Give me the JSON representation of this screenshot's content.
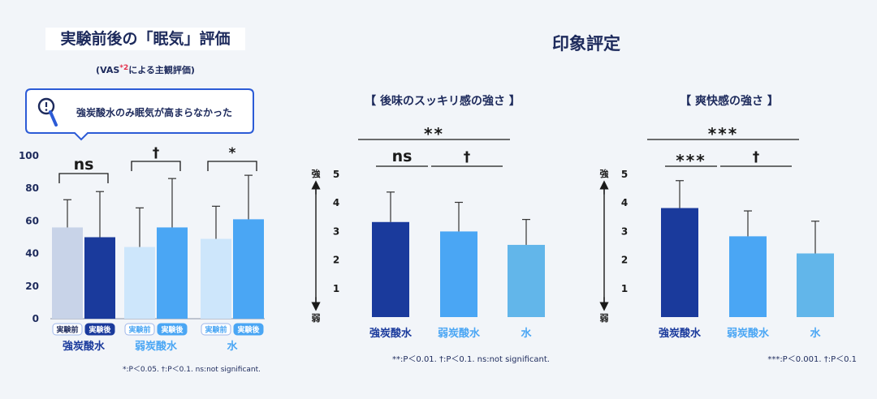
{
  "left_panel": {
    "title": "実験前後の「眠気」評価",
    "subtitle_prefix": "(VAS",
    "subtitle_sup": "*2",
    "subtitle_suffix": "による主観評価)",
    "callout": "強炭酸水のみ眠気が高まらなかった",
    "footnote": "*:P＜0.05. †:P＜0.1. ns:not significant."
  },
  "right_panel": {
    "title": "印象評定",
    "axis_top": "強",
    "axis_bottom": "弱"
  },
  "chart_data": [
    {
      "type": "bar",
      "title": "",
      "categories": [
        "強炭酸水",
        "弱炭酸水",
        "水"
      ],
      "subcategories": [
        "実験前",
        "実験後"
      ],
      "series": [
        {
          "name": "実験前",
          "values": [
            56,
            44,
            49
          ],
          "error_upper": [
            73,
            68,
            69
          ]
        },
        {
          "name": "実験後",
          "values": [
            50,
            56,
            61
          ],
          "error_upper": [
            78,
            86,
            88
          ]
        }
      ],
      "ylim": [
        0,
        100
      ],
      "yticks": [
        0,
        20,
        40,
        60,
        80,
        100
      ],
      "significance": [
        {
          "group": "強炭酸水",
          "label": "ns"
        },
        {
          "group": "弱炭酸水",
          "label": "†"
        },
        {
          "group": "水",
          "label": "*"
        }
      ],
      "colors": {
        "強炭酸水": [
          "#c8d3e8",
          "#1a3a9c"
        ],
        "弱炭酸水": [
          "#cde6fb",
          "#4aa6f4"
        ],
        "水": [
          "#cde6fb",
          "#4aa6f4"
        ]
      }
    },
    {
      "type": "bar",
      "title": "【 後味のスッキリ感の強さ 】",
      "categories": [
        "強炭酸水",
        "弱炭酸水",
        "水"
      ],
      "values": [
        3.33,
        3.0,
        2.53
      ],
      "error_upper": [
        4.38,
        4.02,
        3.42
      ],
      "ylim": [
        0,
        5
      ],
      "yticks": [
        1,
        2,
        3,
        4,
        5
      ],
      "colors": [
        "#1a3a9c",
        "#4aa6f4",
        "#62b6ea"
      ],
      "significance": [
        {
          "pair": [
            "強炭酸水",
            "弱炭酸水"
          ],
          "label": "ns"
        },
        {
          "pair": [
            "弱炭酸水",
            "水"
          ],
          "label": "†"
        },
        {
          "pair": [
            "強炭酸水",
            "水"
          ],
          "label": "**"
        }
      ],
      "footnote": "**:P＜0.01.  †:P＜0.1. ns:not significant."
    },
    {
      "type": "bar",
      "title": "【 爽快感の強さ 】",
      "categories": [
        "強炭酸水",
        "弱炭酸水",
        "水"
      ],
      "values": [
        3.82,
        2.83,
        2.23
      ],
      "error_upper": [
        4.78,
        3.72,
        3.36
      ],
      "ylim": [
        0,
        5
      ],
      "yticks": [
        1,
        2,
        3,
        4,
        5
      ],
      "colors": [
        "#1a3a9c",
        "#4aa6f4",
        "#62b6ea"
      ],
      "significance": [
        {
          "pair": [
            "強炭酸水",
            "弱炭酸水"
          ],
          "label": "***"
        },
        {
          "pair": [
            "弱炭酸水",
            "水"
          ],
          "label": "†"
        },
        {
          "pair": [
            "強炭酸水",
            "水"
          ],
          "label": "***"
        }
      ],
      "footnote": "***:P＜0.001. †:P＜0.1"
    }
  ]
}
